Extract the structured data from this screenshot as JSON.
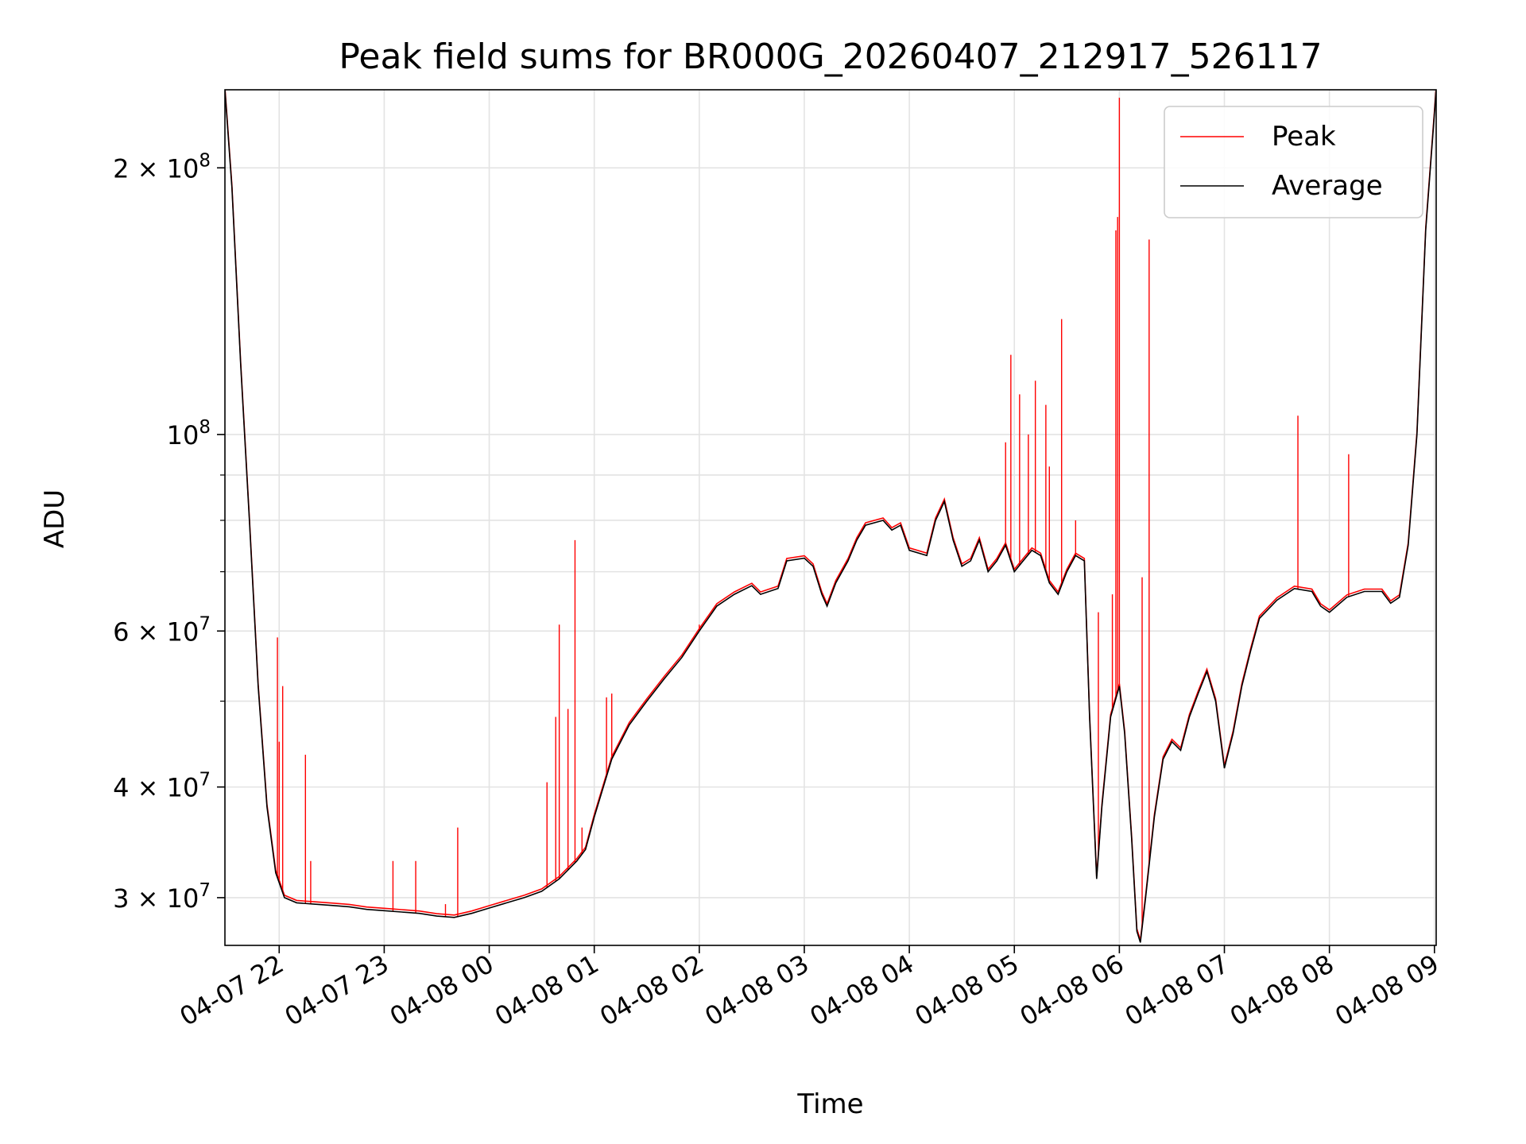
{
  "chart_data": {
    "type": "line",
    "title": "Peak field sums for BR000G_20260407_212917_526117",
    "xlabel": "Time",
    "ylabel": "ADU",
    "y_scale": "log",
    "ylim": [
      26500000,
      245000000
    ],
    "xlim": [
      "2026-04-07 21:29",
      "2026-04-08 09:01"
    ],
    "grid": true,
    "legend_position": "top-right",
    "x_ticks": [
      {
        "t": "2026-04-07 22:00",
        "label": "04-07 22"
      },
      {
        "t": "2026-04-07 23:00",
        "label": "04-07 23"
      },
      {
        "t": "2026-04-08 00:00",
        "label": "04-08 00"
      },
      {
        "t": "2026-04-08 01:00",
        "label": "04-08 01"
      },
      {
        "t": "2026-04-08 02:00",
        "label": "04-08 02"
      },
      {
        "t": "2026-04-08 03:00",
        "label": "04-08 03"
      },
      {
        "t": "2026-04-08 04:00",
        "label": "04-08 04"
      },
      {
        "t": "2026-04-08 05:00",
        "label": "04-08 05"
      },
      {
        "t": "2026-04-08 06:00",
        "label": "04-08 06"
      },
      {
        "t": "2026-04-08 07:00",
        "label": "04-08 07"
      },
      {
        "t": "2026-04-08 08:00",
        "label": "04-08 08"
      },
      {
        "t": "2026-04-08 09:00",
        "label": "04-08 09"
      }
    ],
    "y_major_ticks": [
      {
        "value": 30000000,
        "mantissa": "3",
        "exp": "7"
      },
      {
        "value": 40000000,
        "mantissa": "4",
        "exp": "7"
      },
      {
        "value": 60000000,
        "mantissa": "6",
        "exp": "7"
      },
      {
        "value": 100000000,
        "mantissa": "",
        "exp": "8"
      },
      {
        "value": 200000000,
        "mantissa": "2",
        "exp": "8"
      }
    ],
    "y_minor_ticks": [
      50000000,
      70000000,
      80000000,
      90000000
    ],
    "series": [
      {
        "name": "Average",
        "color": "#000000",
        "points": [
          [
            "2026-04-07 21:29",
            245000000
          ],
          [
            "2026-04-07 21:33",
            190000000
          ],
          [
            "2026-04-07 21:38",
            120000000
          ],
          [
            "2026-04-07 21:43",
            80000000
          ],
          [
            "2026-04-07 21:48",
            52000000
          ],
          [
            "2026-04-07 21:53",
            38000000
          ],
          [
            "2026-04-07 21:58",
            32000000
          ],
          [
            "2026-04-07 22:03",
            30000000
          ],
          [
            "2026-04-07 22:10",
            29600000
          ],
          [
            "2026-04-07 22:20",
            29500000
          ],
          [
            "2026-04-07 22:30",
            29400000
          ],
          [
            "2026-04-07 22:40",
            29300000
          ],
          [
            "2026-04-07 22:50",
            29100000
          ],
          [
            "2026-04-07 23:00",
            29000000
          ],
          [
            "2026-04-07 23:10",
            28900000
          ],
          [
            "2026-04-07 23:20",
            28800000
          ],
          [
            "2026-04-07 23:30",
            28600000
          ],
          [
            "2026-04-07 23:40",
            28500000
          ],
          [
            "2026-04-07 23:50",
            28800000
          ],
          [
            "2026-04-08 00:00",
            29200000
          ],
          [
            "2026-04-08 00:10",
            29600000
          ],
          [
            "2026-04-08 00:20",
            30000000
          ],
          [
            "2026-04-08 00:30",
            30500000
          ],
          [
            "2026-04-08 00:40",
            31500000
          ],
          [
            "2026-04-08 00:50",
            33000000
          ],
          [
            "2026-04-08 00:55",
            34000000
          ],
          [
            "2026-04-08 01:00",
            37000000
          ],
          [
            "2026-04-08 01:10",
            43000000
          ],
          [
            "2026-04-08 01:20",
            47000000
          ],
          [
            "2026-04-08 01:30",
            50000000
          ],
          [
            "2026-04-08 01:40",
            53000000
          ],
          [
            "2026-04-08 01:50",
            56000000
          ],
          [
            "2026-04-08 02:00",
            60000000
          ],
          [
            "2026-04-08 02:10",
            64000000
          ],
          [
            "2026-04-08 02:20",
            66000000
          ],
          [
            "2026-04-08 02:30",
            67500000
          ],
          [
            "2026-04-08 02:35",
            66000000
          ],
          [
            "2026-04-08 02:45",
            67000000
          ],
          [
            "2026-04-08 02:50",
            72000000
          ],
          [
            "2026-04-08 03:00",
            72500000
          ],
          [
            "2026-04-08 03:05",
            71000000
          ],
          [
            "2026-04-08 03:10",
            66000000
          ],
          [
            "2026-04-08 03:13",
            64000000
          ],
          [
            "2026-04-08 03:18",
            68000000
          ],
          [
            "2026-04-08 03:25",
            72000000
          ],
          [
            "2026-04-08 03:30",
            76000000
          ],
          [
            "2026-04-08 03:35",
            79000000
          ],
          [
            "2026-04-08 03:45",
            80000000
          ],
          [
            "2026-04-08 03:50",
            78000000
          ],
          [
            "2026-04-08 03:55",
            79000000
          ],
          [
            "2026-04-08 04:00",
            74000000
          ],
          [
            "2026-04-08 04:10",
            73000000
          ],
          [
            "2026-04-08 04:15",
            80000000
          ],
          [
            "2026-04-08 04:20",
            84000000
          ],
          [
            "2026-04-08 04:25",
            76000000
          ],
          [
            "2026-04-08 04:30",
            71000000
          ],
          [
            "2026-04-08 04:35",
            72000000
          ],
          [
            "2026-04-08 04:40",
            76000000
          ],
          [
            "2026-04-08 04:45",
            70000000
          ],
          [
            "2026-04-08 04:50",
            72000000
          ],
          [
            "2026-04-08 04:55",
            75000000
          ],
          [
            "2026-04-08 05:00",
            70000000
          ],
          [
            "2026-04-08 05:05",
            72000000
          ],
          [
            "2026-04-08 05:10",
            74000000
          ],
          [
            "2026-04-08 05:15",
            73000000
          ],
          [
            "2026-04-08 05:20",
            68000000
          ],
          [
            "2026-04-08 05:25",
            66000000
          ],
          [
            "2026-04-08 05:30",
            70000000
          ],
          [
            "2026-04-08 05:35",
            73000000
          ],
          [
            "2026-04-08 05:40",
            72000000
          ],
          [
            "2026-04-08 05:43",
            48000000
          ],
          [
            "2026-04-08 05:47",
            31500000
          ],
          [
            "2026-04-08 05:50",
            38000000
          ],
          [
            "2026-04-08 05:55",
            48000000
          ],
          [
            "2026-04-08 06:00",
            52000000
          ],
          [
            "2026-04-08 06:03",
            46000000
          ],
          [
            "2026-04-08 06:07",
            35000000
          ],
          [
            "2026-04-08 06:10",
            27500000
          ],
          [
            "2026-04-08 06:12",
            26700000
          ],
          [
            "2026-04-08 06:15",
            30000000
          ],
          [
            "2026-04-08 06:20",
            37000000
          ],
          [
            "2026-04-08 06:25",
            43000000
          ],
          [
            "2026-04-08 06:30",
            45000000
          ],
          [
            "2026-04-08 06:35",
            44000000
          ],
          [
            "2026-04-08 06:40",
            48000000
          ],
          [
            "2026-04-08 06:45",
            51000000
          ],
          [
            "2026-04-08 06:50",
            54000000
          ],
          [
            "2026-04-08 06:55",
            50000000
          ],
          [
            "2026-04-08 07:00",
            42000000
          ],
          [
            "2026-04-08 07:05",
            46000000
          ],
          [
            "2026-04-08 07:10",
            52000000
          ],
          [
            "2026-04-08 07:15",
            57000000
          ],
          [
            "2026-04-08 07:20",
            62000000
          ],
          [
            "2026-04-08 07:30",
            65000000
          ],
          [
            "2026-04-08 07:40",
            67000000
          ],
          [
            "2026-04-08 07:50",
            66500000
          ],
          [
            "2026-04-08 07:55",
            64000000
          ],
          [
            "2026-04-08 08:00",
            63000000
          ],
          [
            "2026-04-08 08:10",
            65500000
          ],
          [
            "2026-04-08 08:20",
            66500000
          ],
          [
            "2026-04-08 08:30",
            66500000
          ],
          [
            "2026-04-08 08:35",
            64500000
          ],
          [
            "2026-04-08 08:40",
            65500000
          ],
          [
            "2026-04-08 08:45",
            75000000
          ],
          [
            "2026-04-08 08:50",
            100000000
          ],
          [
            "2026-04-08 08:55",
            170000000
          ],
          [
            "2026-04-08 09:01",
            245000000
          ]
        ]
      },
      {
        "name": "Peak",
        "color": "#ff0000",
        "spikes": [
          [
            "2026-04-07 21:59",
            59000000
          ],
          [
            "2026-04-07 22:00",
            45000000
          ],
          [
            "2026-04-07 22:02",
            52000000
          ],
          [
            "2026-04-07 22:15",
            43500000
          ],
          [
            "2026-04-07 22:18",
            33000000
          ],
          [
            "2026-04-07 23:05",
            33000000
          ],
          [
            "2026-04-07 23:18",
            33000000
          ],
          [
            "2026-04-07 23:35",
            29500000
          ],
          [
            "2026-04-07 23:42",
            36000000
          ],
          [
            "2026-04-08 00:33",
            40500000
          ],
          [
            "2026-04-08 00:38",
            48000000
          ],
          [
            "2026-04-08 00:40",
            61000000
          ],
          [
            "2026-04-08 00:45",
            49000000
          ],
          [
            "2026-04-08 00:49",
            76000000
          ],
          [
            "2026-04-08 00:53",
            36000000
          ],
          [
            "2026-04-08 01:07",
            50500000
          ],
          [
            "2026-04-08 01:10",
            51000000
          ],
          [
            "2026-04-08 02:00",
            61000000
          ],
          [
            "2026-04-08 04:55",
            98000000
          ],
          [
            "2026-04-08 04:58",
            123000000
          ],
          [
            "2026-04-08 05:03",
            111000000
          ],
          [
            "2026-04-08 05:08",
            100000000
          ],
          [
            "2026-04-08 05:12",
            115000000
          ],
          [
            "2026-04-08 05:18",
            108000000
          ],
          [
            "2026-04-08 05:20",
            92000000
          ],
          [
            "2026-04-08 05:27",
            135000000
          ],
          [
            "2026-04-08 05:35",
            80000000
          ],
          [
            "2026-04-08 05:48",
            63000000
          ],
          [
            "2026-04-08 05:56",
            66000000
          ],
          [
            "2026-04-08 05:58",
            170000000
          ],
          [
            "2026-04-08 05:59",
            176000000
          ],
          [
            "2026-04-08 06:00",
            240000000
          ],
          [
            "2026-04-08 06:13",
            69000000
          ],
          [
            "2026-04-08 06:17",
            166000000
          ],
          [
            "2026-04-08 07:42",
            105000000
          ],
          [
            "2026-04-08 08:11",
            95000000
          ]
        ]
      }
    ]
  }
}
